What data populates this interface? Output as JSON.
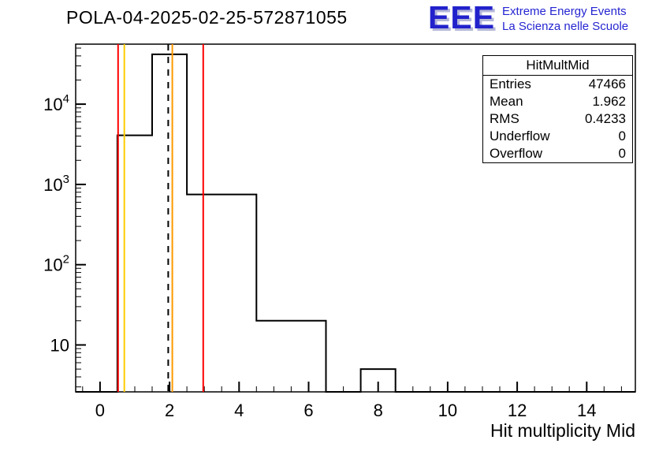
{
  "header": {
    "title": "POLA-04-2025-02-25-572871055",
    "logo": {
      "text": "EEE",
      "line1": "Extreme Energy Events",
      "line2": "La Scienza nelle Scuole",
      "color": "#2222cc"
    }
  },
  "stats": {
    "title": "HitMultMid",
    "entries": {
      "label": "Entries",
      "value": "47466"
    },
    "mean": {
      "label": "Mean",
      "value": "1.962"
    },
    "rms": {
      "label": "RMS",
      "value": "0.4233"
    },
    "underflow": {
      "label": "Underflow",
      "value": "0"
    },
    "overflow": {
      "label": "Overflow",
      "value": "0"
    }
  },
  "chart_data": {
    "type": "bar",
    "subtype": "step-histogram",
    "title": "POLA-04-2025-02-25-572871055",
    "xlabel": "Hit multiplicity Mid",
    "ylabel": "",
    "y_scale": "log",
    "grid": false,
    "xlim": [
      -0.7,
      15.4
    ],
    "ylim": [
      2.6,
      56000
    ],
    "x_major_ticks": [
      0,
      2,
      4,
      6,
      8,
      10,
      12,
      14
    ],
    "x_minor_step": 0.5,
    "y_labeled_decades": [
      10,
      100,
      1000,
      10000
    ],
    "line_color": "#000000",
    "bins": [
      {
        "x1": 0.5,
        "x2": 1.5,
        "count": 4100
      },
      {
        "x1": 1.5,
        "x2": 2.5,
        "count": 41800
      },
      {
        "x1": 2.5,
        "x2": 4.5,
        "count": 750
      },
      {
        "x1": 4.5,
        "x2": 6.5,
        "count": 20
      },
      {
        "x1": 7.5,
        "x2": 8.5,
        "count": 5
      }
    ],
    "marker_lines": [
      {
        "x": 0.52,
        "color": "#ff0000",
        "style": "solid",
        "name": "red-low"
      },
      {
        "x": 0.7,
        "color": "#ffcc00",
        "style": "solid",
        "name": "yellow-low"
      },
      {
        "x": 1.962,
        "color": "#000000",
        "style": "dashed",
        "name": "mean"
      },
      {
        "x": 2.08,
        "color": "#ff9900",
        "style": "solid",
        "name": "yellow-high"
      },
      {
        "x": 2.97,
        "color": "#ff0000",
        "style": "solid",
        "name": "red-high"
      }
    ]
  }
}
